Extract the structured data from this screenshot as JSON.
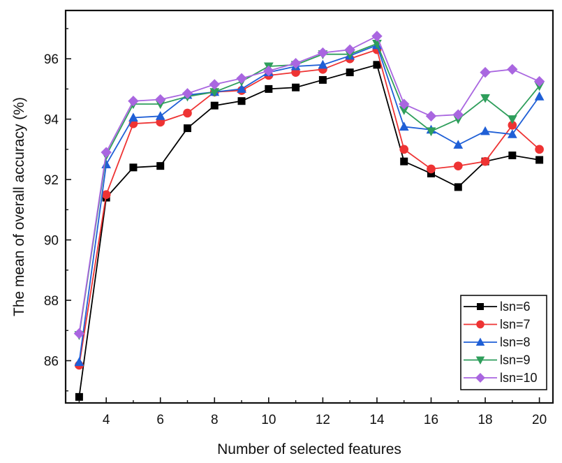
{
  "chart_data": {
    "type": "line",
    "title": "",
    "xlabel": "Number of selected features",
    "ylabel": "The mean of overall accuracy (%)",
    "xlim": [
      2.5,
      20.5
    ],
    "ylim": [
      84.6,
      97.6
    ],
    "x_ticks": [
      4,
      6,
      8,
      10,
      12,
      14,
      16,
      18,
      20
    ],
    "x_minor_ticks": [
      3,
      5,
      7,
      9,
      11,
      13,
      15,
      17,
      19
    ],
    "y_ticks": [
      86,
      88,
      90,
      92,
      94,
      96
    ],
    "y_minor_ticks": [
      85,
      87,
      89,
      91,
      93,
      95,
      97
    ],
    "grid": false,
    "legend_position": "bottom-right",
    "x": [
      3,
      4,
      5,
      6,
      7,
      8,
      9,
      10,
      11,
      12,
      13,
      14,
      15,
      16,
      17,
      18,
      19,
      20
    ],
    "series": [
      {
        "name": "lsn=6",
        "color": "#000000",
        "marker": "square",
        "values": [
          84.8,
          91.4,
          92.4,
          92.45,
          93.7,
          94.45,
          94.6,
          95.0,
          95.05,
          95.3,
          95.55,
          95.8,
          92.6,
          92.2,
          91.75,
          92.6,
          92.8,
          92.65
        ]
      },
      {
        "name": "lsn=7",
        "color": "#ee3333",
        "marker": "circle",
        "values": [
          85.85,
          91.5,
          93.85,
          93.9,
          94.2,
          94.9,
          94.95,
          95.45,
          95.55,
          95.65,
          96.0,
          96.3,
          93.0,
          92.35,
          92.45,
          92.6,
          93.8,
          93.0
        ]
      },
      {
        "name": "lsn=8",
        "color": "#1f5fd6",
        "marker": "triangle-up",
        "values": [
          85.95,
          92.5,
          94.05,
          94.1,
          94.8,
          94.9,
          95.0,
          95.55,
          95.75,
          95.8,
          96.1,
          96.45,
          93.75,
          93.65,
          93.15,
          93.6,
          93.5,
          94.75
        ]
      },
      {
        "name": "lsn=9",
        "color": "#2e9e5b",
        "marker": "triangle-down",
        "values": [
          86.85,
          92.8,
          94.5,
          94.5,
          94.75,
          94.9,
          95.25,
          95.75,
          95.8,
          96.15,
          96.15,
          96.5,
          94.3,
          93.6,
          94.0,
          94.7,
          94.0,
          95.1
        ]
      },
      {
        "name": "lsn=10",
        "color": "#a966e0",
        "marker": "diamond",
        "values": [
          86.9,
          92.9,
          94.6,
          94.65,
          94.85,
          95.15,
          95.35,
          95.6,
          95.85,
          96.2,
          96.3,
          96.75,
          94.5,
          94.1,
          94.15,
          95.55,
          95.65,
          95.25
        ]
      }
    ]
  }
}
